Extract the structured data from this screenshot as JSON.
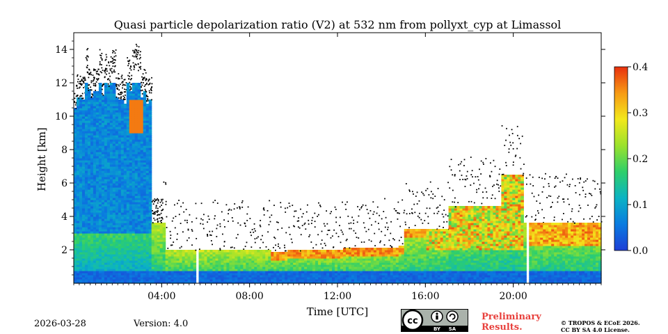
{
  "chart_data": {
    "type": "heatmap",
    "title": "Quasi particle depolarization ratio (V2) at 532 nm from pollyxt_cyp at Limassol",
    "xlabel": "Time [UTC]",
    "ylabel": "Height [km]",
    "xlim_hours": [
      0,
      24
    ],
    "ylim_km": [
      0,
      15
    ],
    "x_ticks": [
      "04:00",
      "08:00",
      "12:00",
      "16:00",
      "20:00"
    ],
    "x_tick_hours": [
      4,
      8,
      12,
      16,
      20
    ],
    "y_ticks": [
      "2",
      "4",
      "6",
      "8",
      "10",
      "12",
      "14"
    ],
    "y_tick_values": [
      2,
      4,
      6,
      8,
      10,
      12,
      14
    ],
    "colorbar": {
      "range": [
        0.0,
        0.4
      ],
      "ticks": [
        "0.0",
        "0.1",
        "0.2",
        "0.3",
        "0.4"
      ],
      "tick_values": [
        0.0,
        0.1,
        0.2,
        0.3,
        0.4
      ],
      "colormap": [
        "#1e3fd6",
        "#0a7be0",
        "#0bb3c4",
        "#2fcf6a",
        "#9be22c",
        "#f2e81c",
        "#f79a14",
        "#e8300e"
      ]
    },
    "data_gaps_hours": [
      [
        5.55,
        5.72
      ],
      [
        20.55,
        20.75
      ]
    ]
  },
  "footer": {
    "date": "2026-03-28",
    "version": "Version: 4.0",
    "preliminary_line1": "Preliminary",
    "preliminary_line2": "Results.",
    "license_line1": "© TROPOS & ECoE 2026.",
    "license_line2": "CC BY SA 4.0 License.",
    "cc_badge": {
      "cc": "cc",
      "by": "BY",
      "sa": "SA"
    }
  }
}
